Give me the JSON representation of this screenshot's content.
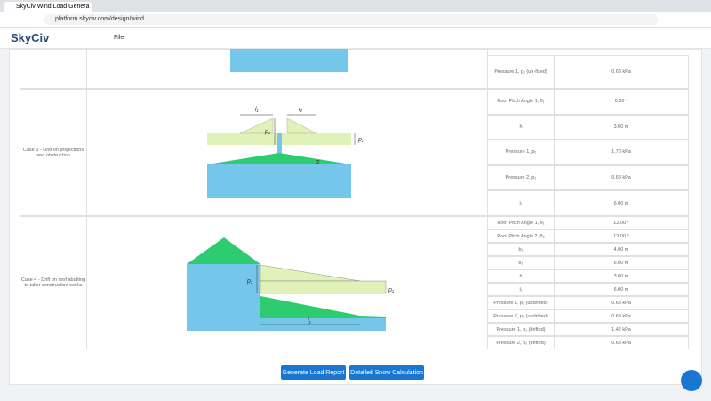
{
  "browser": {
    "tab_title": "SkyCiv Wind Load Genera",
    "url": "platform.skyciv.com/design/wind"
  },
  "app": {
    "logo": "SkyCiv",
    "menu": "File"
  },
  "table": {
    "rows": [
      {
        "case": "",
        "params": [
          [
            "Pressure 1, p₁ (un-fixed)",
            "0.68 kPa"
          ]
        ]
      },
      {
        "case": "Case 3 - Drift on projections and obstruction",
        "params": [
          [
            "Roof Pitch Angle 1, θ₁",
            "6.00 °"
          ],
          [
            "h",
            "3.00 m"
          ],
          [
            "Pressure 1, p₁",
            "1.70 kPa"
          ],
          [
            "Pressure 2, p₂",
            "0.68 kPa"
          ],
          [
            "l₁",
            "6.00 m"
          ]
        ]
      },
      {
        "case": "Case 4 - Drift on roof abutting to taller construction works",
        "params": [
          [
            "Roof Pitch Angle 1, θ₁",
            "12.00 °"
          ],
          [
            "Roof Pitch Angle 2, θ₂",
            "12.00 °"
          ],
          [
            "b₁",
            "4.00 m"
          ],
          [
            "b₂",
            "6.00 m"
          ],
          [
            "h",
            "3.00 m"
          ],
          [
            "l₁",
            "6.00 m"
          ],
          [
            "Pressure 1, p₁ (undrifted)",
            "0.68 kPa"
          ],
          [
            "Pressure 2, p₂ (undrifted)",
            "0.68 kPa"
          ],
          [
            "Pressure 1, p₁ (drifted)",
            "1.42 kPa"
          ],
          [
            "Pressure 2, p₂ (drifted)",
            "0.68 kPa"
          ]
        ]
      }
    ]
  },
  "diagram3": {
    "l1": "l₁",
    "l2": "l₂",
    "p1": "p₁",
    "p2": "p₂",
    "alpha": "α"
  },
  "diagram4": {
    "p1": "p₁",
    "p1_right": "p₁",
    "l1": "l₁"
  },
  "buttons": {
    "report": "Generate Load Report",
    "snow": "Detailed Snow Calculation"
  }
}
